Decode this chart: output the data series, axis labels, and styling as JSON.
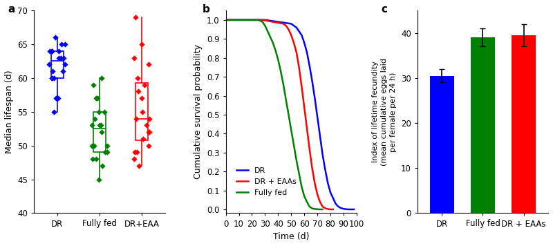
{
  "panel_a": {
    "title": "a",
    "ylabel": "Median lifespan (d)",
    "ylim": [
      40,
      70
    ],
    "yticks": [
      40,
      45,
      50,
      55,
      60,
      65,
      70
    ],
    "categories": [
      "DR",
      "Fully fed",
      "DR+EAA"
    ],
    "colors": [
      "#0000ff",
      "#008000",
      "#ff0000"
    ],
    "DR_data": [
      66,
      65,
      65,
      64,
      64,
      64,
      64,
      63,
      63,
      63,
      62,
      62,
      61,
      61,
      60,
      60,
      60,
      57,
      57,
      55
    ],
    "FF_data": [
      60,
      59,
      57,
      57,
      55,
      55,
      54,
      53,
      53,
      53,
      52,
      50,
      50,
      50,
      49,
      49,
      48,
      48,
      47,
      45
    ],
    "EAA_data": [
      69,
      65,
      63,
      62,
      60,
      59,
      58,
      57,
      55,
      54,
      54,
      53,
      52,
      52,
      51,
      50,
      49,
      49,
      48,
      47
    ]
  },
  "panel_b": {
    "title": "b",
    "xlabel": "Time (d)",
    "ylabel": "Cumulative survival probability",
    "xlim": [
      0,
      100
    ],
    "ylim": [
      -0.02,
      1.05
    ],
    "xticks": [
      0,
      10,
      20,
      30,
      40,
      50,
      60,
      70,
      80,
      90,
      100
    ],
    "yticks": [
      0.0,
      0.1,
      0.2,
      0.3,
      0.4,
      0.5,
      0.6,
      0.7,
      0.8,
      0.9,
      1.0
    ],
    "legend_labels": [
      "DR",
      "DR + EAAs",
      "Fully fed"
    ],
    "legend_colors": [
      "#0000ff",
      "#ff0000",
      "#008000"
    ],
    "DR_x": [
      0,
      30,
      35,
      40,
      45,
      50,
      52,
      54,
      56,
      58,
      60,
      62,
      64,
      66,
      68,
      70,
      72,
      74,
      76,
      78,
      80,
      82,
      84,
      86,
      88,
      90,
      92,
      94,
      96,
      98
    ],
    "DR_y": [
      1.0,
      1.0,
      0.995,
      0.99,
      0.985,
      0.98,
      0.97,
      0.96,
      0.94,
      0.92,
      0.88,
      0.83,
      0.76,
      0.68,
      0.59,
      0.49,
      0.39,
      0.29,
      0.21,
      0.14,
      0.09,
      0.06,
      0.03,
      0.015,
      0.007,
      0.003,
      0.001,
      0.0,
      0.0,
      0.0
    ],
    "EAA_x": [
      0,
      28,
      32,
      36,
      40,
      44,
      46,
      48,
      50,
      52,
      54,
      56,
      58,
      60,
      62,
      64,
      66,
      68,
      70,
      72,
      74,
      76,
      78,
      80,
      82
    ],
    "EAA_y": [
      1.0,
      1.0,
      0.995,
      0.99,
      0.985,
      0.98,
      0.97,
      0.95,
      0.92,
      0.88,
      0.83,
      0.75,
      0.65,
      0.54,
      0.43,
      0.32,
      0.22,
      0.14,
      0.08,
      0.04,
      0.015,
      0.006,
      0.002,
      0.0,
      0.0
    ],
    "FF_x": [
      0,
      25,
      28,
      30,
      32,
      34,
      36,
      38,
      40,
      42,
      44,
      46,
      48,
      50,
      52,
      54,
      56,
      58,
      60,
      62,
      64,
      66,
      68,
      70,
      72,
      74
    ],
    "FF_y": [
      1.0,
      1.0,
      0.99,
      0.97,
      0.94,
      0.91,
      0.88,
      0.84,
      0.79,
      0.73,
      0.66,
      0.58,
      0.5,
      0.42,
      0.34,
      0.26,
      0.19,
      0.12,
      0.07,
      0.04,
      0.015,
      0.005,
      0.002,
      0.001,
      0.0,
      0.0
    ]
  },
  "panel_c": {
    "title": "c",
    "ylabel": "Index of lifetime fecundity\n(mean cumulative eggs laid\nper female per 24 h)",
    "ylim": [
      0,
      45
    ],
    "yticks": [
      0,
      10,
      20,
      30,
      40
    ],
    "categories": [
      "DR",
      "Fully fed",
      "DR + EAAs"
    ],
    "values": [
      30.5,
      39.0,
      39.5
    ],
    "errors": [
      1.5,
      2.0,
      2.5
    ],
    "colors": [
      "#0000ff",
      "#008000",
      "#ff0000"
    ]
  }
}
